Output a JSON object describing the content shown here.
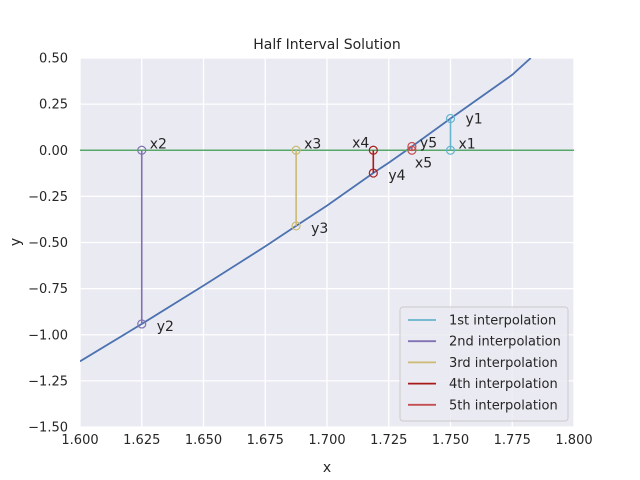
{
  "chart_data": {
    "type": "line",
    "title": "Half Interval Solution",
    "xlabel": "x",
    "ylabel": "y",
    "xlim": [
      1.6,
      1.8
    ],
    "ylim": [
      -1.5,
      0.5
    ],
    "xticks": [
      "1.600",
      "1.625",
      "1.650",
      "1.675",
      "1.700",
      "1.725",
      "1.750",
      "1.775",
      "1.800"
    ],
    "yticks": [
      "0.50",
      "0.25",
      "0.00",
      "−0.25",
      "−0.50",
      "−0.75",
      "−1.00",
      "−1.25",
      "−1.50"
    ],
    "grid": true,
    "legend_position": "lower-right",
    "curve": {
      "color": "#4c72b0",
      "x": [
        1.6,
        1.625,
        1.65,
        1.675,
        1.6875,
        1.7,
        1.71875,
        1.725,
        1.734375,
        1.75,
        1.775,
        1.7825
      ],
      "y": [
        -1.144,
        -0.9414,
        -0.7339,
        -0.5212,
        -0.4102,
        -0.3,
        -0.1236,
        -0.0675,
        0.0203,
        0.1719,
        0.409,
        0.5
      ]
    },
    "baseline": {
      "y": 0,
      "color": "#55a868"
    },
    "interpolations": [
      {
        "name": "1st interpolation",
        "color": "#64b5cd",
        "x": 1.75,
        "y": 0.1719,
        "x_label": "x1",
        "y_label": "y1"
      },
      {
        "name": "2nd interpolation",
        "color": "#8172b3",
        "x": 1.625,
        "y": -0.9414,
        "x_label": "x2",
        "y_label": "y2"
      },
      {
        "name": "3rd interpolation",
        "color": "#ccb974",
        "x": 1.6875,
        "y": -0.4102,
        "x_label": "x3",
        "y_label": "y3"
      },
      {
        "name": "4th interpolation",
        "color": "#a81b1b",
        "x": 1.71875,
        "y": -0.1236,
        "x_label": "x4",
        "y_label": "y4"
      },
      {
        "name": "5th interpolation",
        "color": "#c44e52",
        "x": 1.734375,
        "y": 0.0203,
        "x_label": "x5",
        "y_label": "y5"
      }
    ]
  }
}
